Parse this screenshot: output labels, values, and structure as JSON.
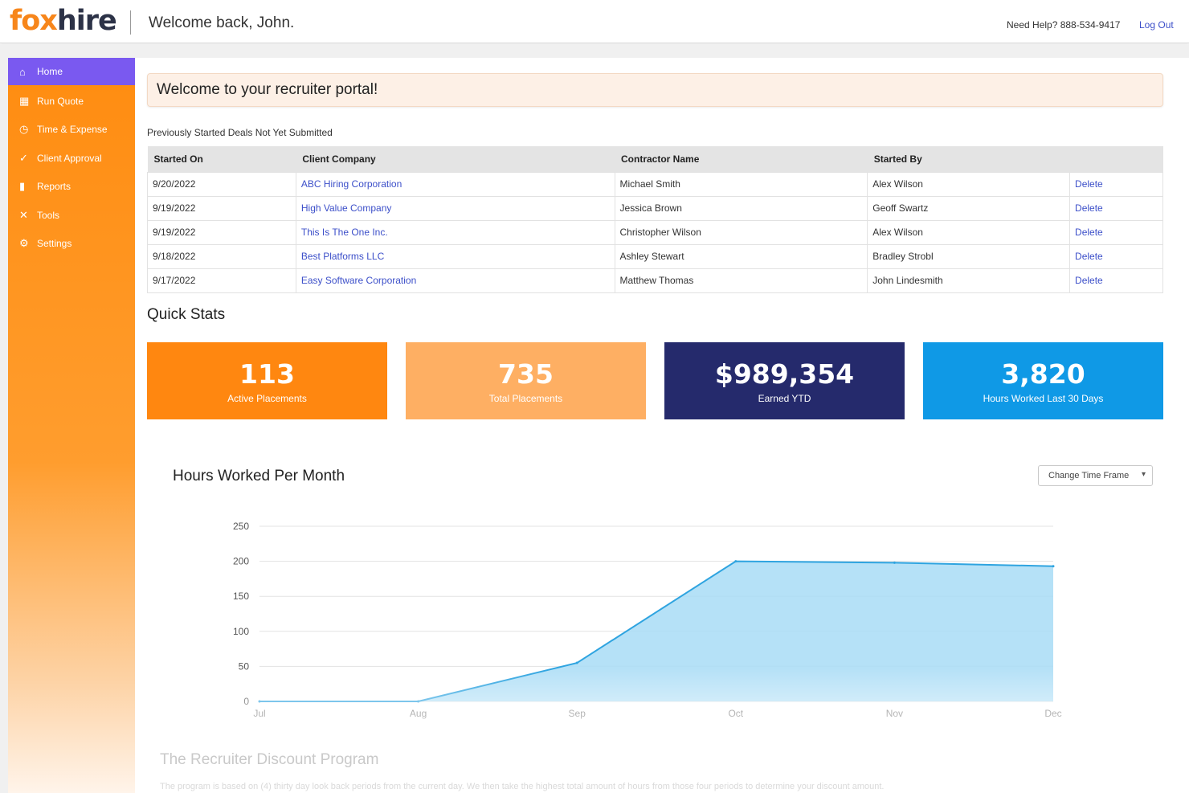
{
  "header": {
    "logo_fox": "fox",
    "logo_hire": "hire",
    "welcome": "Welcome back, John.",
    "help": "Need Help? 888-534-9417",
    "logout": "Log Out"
  },
  "sidebar": {
    "items": [
      {
        "label": "Home",
        "icon": "home-icon",
        "glyph": "⌂"
      },
      {
        "label": "Run Quote",
        "icon": "calculator-icon",
        "glyph": "▦"
      },
      {
        "label": "Time & Expense",
        "icon": "clock-icon",
        "glyph": "◷"
      },
      {
        "label": "Client Approval",
        "icon": "check-icon",
        "glyph": "✓"
      },
      {
        "label": "Reports",
        "icon": "bar-chart-icon",
        "glyph": "▮"
      },
      {
        "label": "Tools",
        "icon": "tools-icon",
        "glyph": "✕"
      },
      {
        "label": "Settings",
        "icon": "gear-icon",
        "glyph": "⚙"
      }
    ]
  },
  "banner": "Welcome to your recruiter portal!",
  "deals": {
    "title": "Previously Started Deals Not Yet Submitted",
    "columns": [
      "Started On",
      "Client Company",
      "Contractor Name",
      "Started By",
      ""
    ],
    "rows": [
      {
        "started_on": "9/20/2022",
        "client": "ABC Hiring Corporation",
        "contractor": "Michael Smith",
        "started_by": "Alex Wilson",
        "action": "Delete"
      },
      {
        "started_on": "9/19/2022",
        "client": "High Value Company",
        "contractor": "Jessica Brown",
        "started_by": "Geoff Swartz",
        "action": "Delete"
      },
      {
        "started_on": "9/19/2022",
        "client": "This Is The One Inc.",
        "contractor": "Christopher Wilson",
        "started_by": "Alex Wilson",
        "action": "Delete"
      },
      {
        "started_on": "9/18/2022",
        "client": "Best Platforms LLC",
        "contractor": "Ashley Stewart",
        "started_by": "Bradley Strobl",
        "action": "Delete"
      },
      {
        "started_on": "9/17/2022",
        "client": "Easy Software Corporation",
        "contractor": "Matthew Thomas",
        "started_by": "John Lindesmith",
        "action": "Delete"
      }
    ]
  },
  "quick_stats": {
    "title": "Quick Stats",
    "cards": [
      {
        "value": "113",
        "label": "Active Placements",
        "color": "#ff8710"
      },
      {
        "value": "735",
        "label": "Total Placements",
        "color": "#feaf63"
      },
      {
        "value": "$989,354",
        "label": "Earned YTD",
        "color": "#252a6c"
      },
      {
        "value": "3,820",
        "label": "Hours Worked Last 30 Days",
        "color": "#0f99e6"
      }
    ]
  },
  "chart": {
    "title": "Hours Worked Per Month",
    "time_frame_label": "Change Time Frame"
  },
  "chart_data": {
    "type": "area",
    "title": "Hours Worked Per Month",
    "categories": [
      "Jul",
      "Aug",
      "Sep",
      "Oct",
      "Nov",
      "Dec"
    ],
    "values": [
      0,
      0,
      55,
      200,
      198,
      193
    ],
    "ylim": [
      0,
      250
    ],
    "yticks": [
      0,
      50,
      100,
      150,
      200,
      250
    ],
    "grid": true,
    "line_color": "#2fa4e0",
    "fill_color": "#a8dcf6"
  },
  "discount": {
    "title": "The Recruiter Discount Program",
    "text": "The program is based on (4) thirty day look back periods from the current day. We then take the highest total amount of hours from those four periods to determine your discount amount."
  }
}
